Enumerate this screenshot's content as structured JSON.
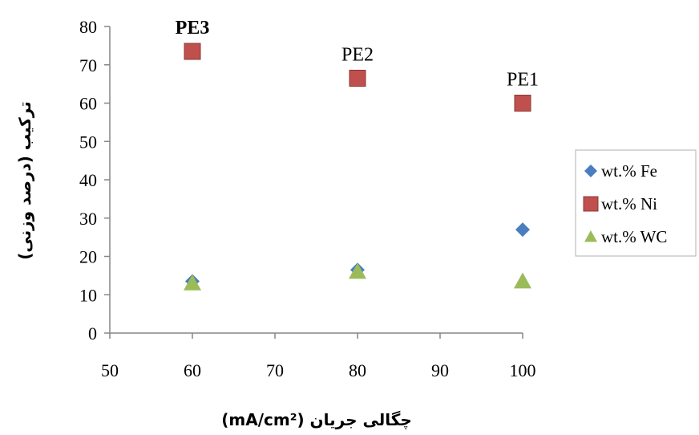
{
  "chart_data": {
    "type": "scatter",
    "xlabel": "چگالی جریان (mA/cm²)",
    "ylabel": "ترکیب (درصد وزنی)",
    "xlim": [
      50,
      100
    ],
    "ylim": [
      0,
      80
    ],
    "x_ticks": [
      "50",
      "60",
      "70",
      "80",
      "90",
      "100"
    ],
    "y_ticks": [
      "0",
      "10",
      "20",
      "30",
      "40",
      "50",
      "60",
      "70",
      "80"
    ],
    "grid": false,
    "legend_position": "right",
    "series": [
      {
        "name": "wt.% Fe",
        "color": "#4a7ebf",
        "marker": "diamond",
        "points": [
          {
            "x": 60,
            "y": 13.5
          },
          {
            "x": 80,
            "y": 16.5
          },
          {
            "x": 100,
            "y": 27
          }
        ]
      },
      {
        "name": "wt.% Ni",
        "color": "#c0504d",
        "marker": "square",
        "points": [
          {
            "x": 60,
            "y": 73.5
          },
          {
            "x": 80,
            "y": 66.5
          },
          {
            "x": 100,
            "y": 60
          }
        ]
      },
      {
        "name": "wt.% WC",
        "color": "#9bbb59",
        "marker": "triangle",
        "points": [
          {
            "x": 60,
            "y": 13
          },
          {
            "x": 80,
            "y": 16
          },
          {
            "x": 100,
            "y": 13.5
          }
        ]
      }
    ],
    "annotations": [
      {
        "text": "PE3",
        "x": 60,
        "y": 73.5,
        "bold": true
      },
      {
        "text": "PE2",
        "x": 80,
        "y": 66.5,
        "bold": false
      },
      {
        "text": "PE1",
        "x": 100,
        "y": 60,
        "bold": false
      }
    ]
  }
}
